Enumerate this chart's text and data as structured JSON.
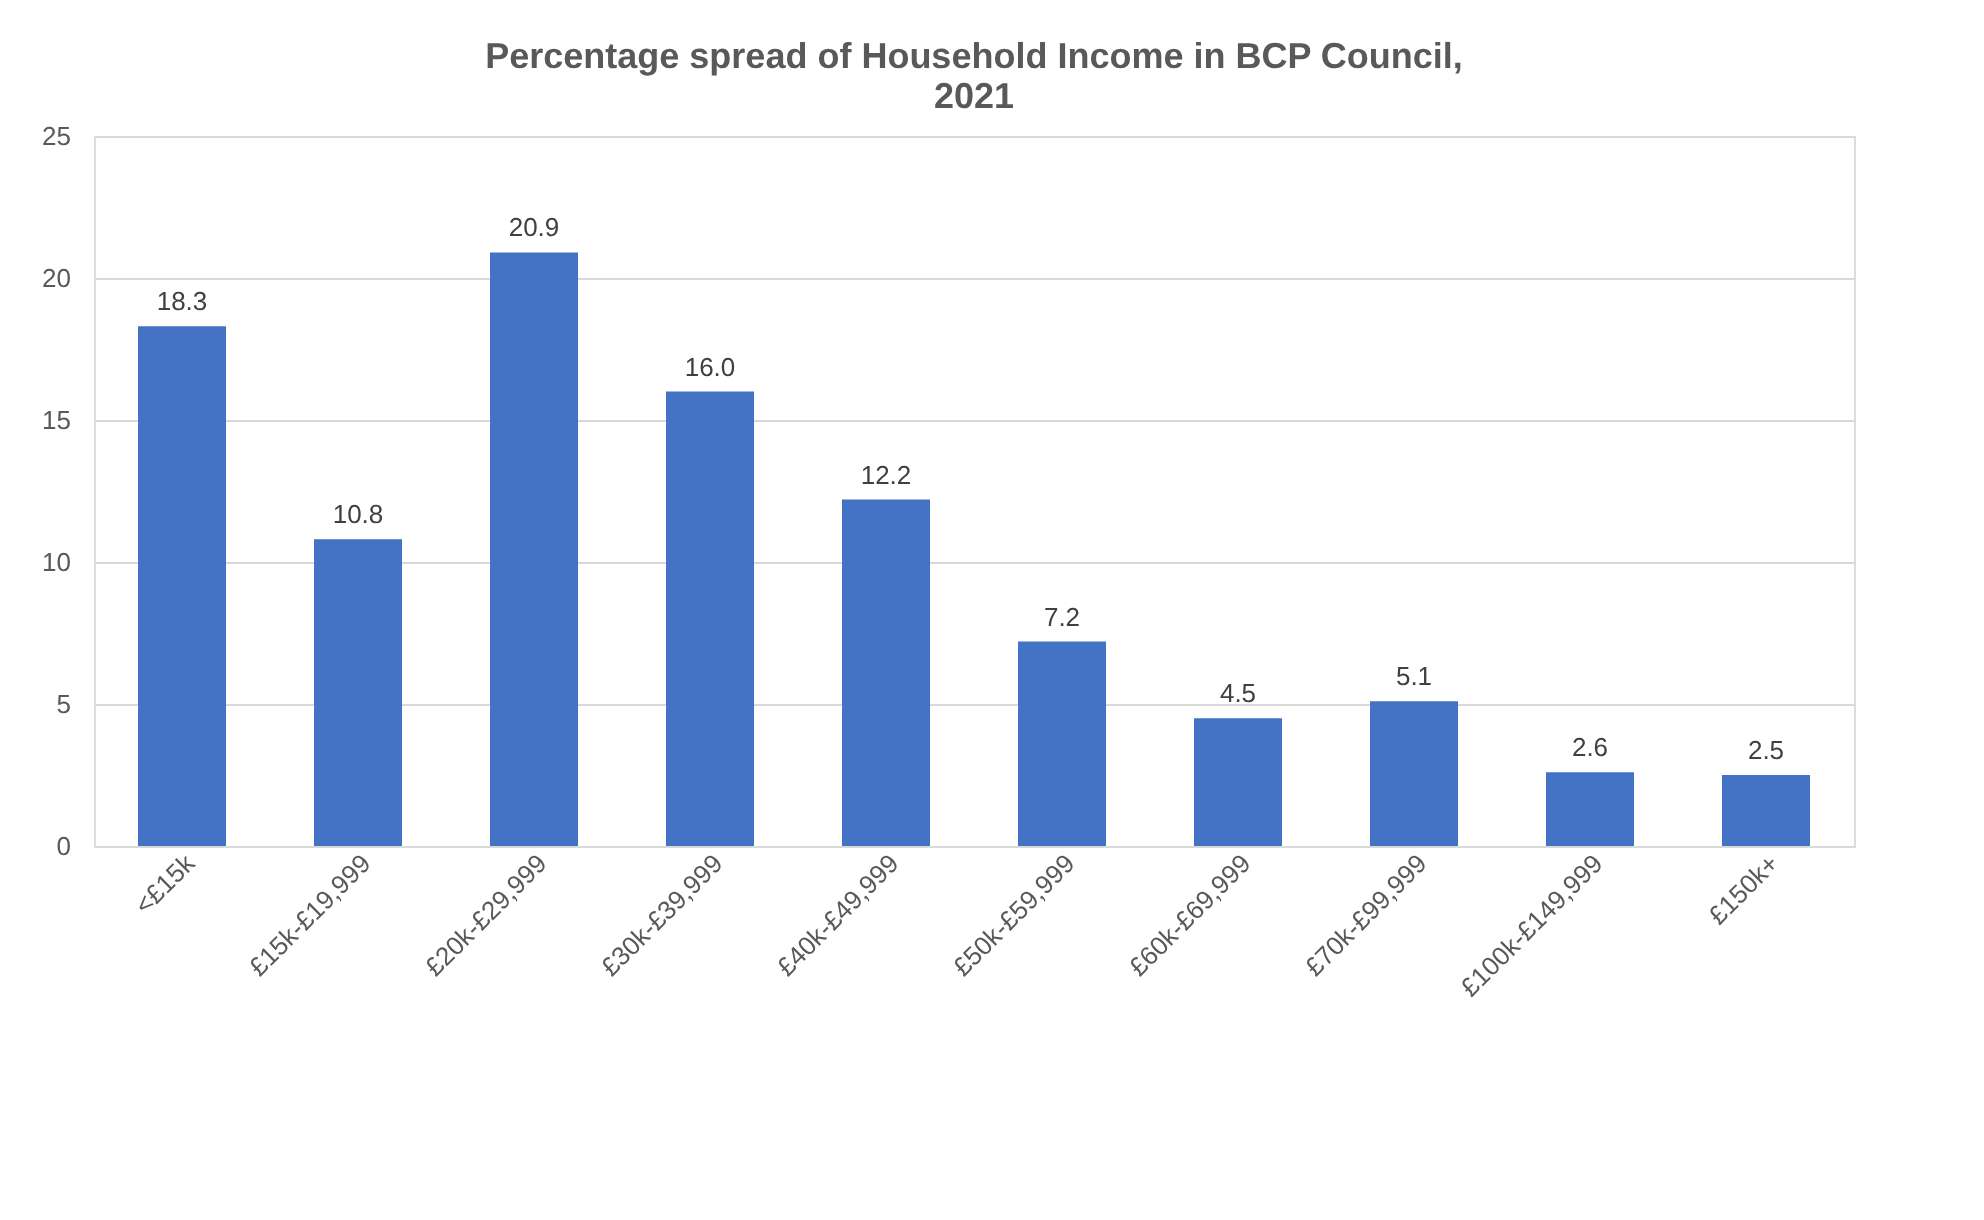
{
  "chart_data": {
    "type": "bar",
    "title": [
      "Percentage spread of Household Income in BCP Council,",
      "2021"
    ],
    "categories": [
      "<£15k",
      "£15k-£19,999",
      "£20k-£29,999",
      "£30k-£39,999",
      "£40k-£49,999",
      "£50k-£59,999",
      "£60k-£69,999",
      "£70k-£99,999",
      "£100k-£149,999",
      "£150k+"
    ],
    "values": [
      18.3,
      10.8,
      20.9,
      16.0,
      12.2,
      7.2,
      4.5,
      5.1,
      2.6,
      2.5
    ],
    "value_labels": [
      "18.3",
      "10.8",
      "20.9",
      "16.0",
      "12.2",
      "7.2",
      "4.5",
      "5.1",
      "2.6",
      "2.5"
    ],
    "color": "#4472c4",
    "ylim": [
      0,
      25
    ],
    "yticks": [
      0,
      5,
      10,
      15,
      20,
      25
    ],
    "grid": "y"
  }
}
